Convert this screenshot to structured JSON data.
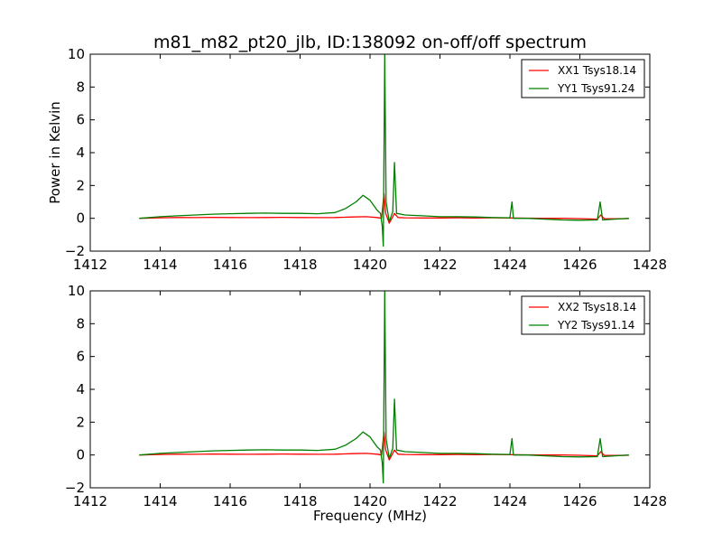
{
  "title": "m81_m82_pt20_jlb, ID:138092 on-off/off spectrum",
  "xlabel": "Frequency (MHz)",
  "ylabel": "Power in Kelvin",
  "chart_data": [
    {
      "type": "line",
      "xlim": [
        1412,
        1428
      ],
      "ylim": [
        -2,
        10
      ],
      "x_ticks": [
        1412,
        1414,
        1416,
        1418,
        1420,
        1422,
        1424,
        1426,
        1428
      ],
      "y_ticks": [
        -2,
        0,
        2,
        4,
        6,
        8,
        10
      ],
      "grid": false,
      "legend_position": "top-right",
      "series": [
        {
          "name": "XX1 Tsys18.14",
          "color": "#ff0000",
          "points": [
            [
              1413.4,
              0.0
            ],
            [
              1414.0,
              0.03
            ],
            [
              1414.5,
              0.05
            ],
            [
              1415.0,
              0.04
            ],
            [
              1415.5,
              0.06
            ],
            [
              1416.0,
              0.05
            ],
            [
              1416.5,
              0.04
            ],
            [
              1417.0,
              0.05
            ],
            [
              1417.5,
              0.06
            ],
            [
              1418.0,
              0.05
            ],
            [
              1418.5,
              0.04
            ],
            [
              1419.0,
              0.05
            ],
            [
              1419.5,
              0.08
            ],
            [
              1419.9,
              0.1
            ],
            [
              1420.2,
              0.05
            ],
            [
              1420.33,
              0.0
            ],
            [
              1420.4,
              1.5
            ],
            [
              1420.45,
              0.3
            ],
            [
              1420.55,
              -0.3
            ],
            [
              1420.65,
              0.1
            ],
            [
              1420.7,
              0.3
            ],
            [
              1420.8,
              0.05
            ],
            [
              1421.0,
              0.03
            ],
            [
              1421.5,
              0.02
            ],
            [
              1422.0,
              0.02
            ],
            [
              1422.5,
              0.03
            ],
            [
              1423.0,
              0.02
            ],
            [
              1423.5,
              0.03
            ],
            [
              1424.0,
              0.02
            ],
            [
              1424.5,
              0.01
            ],
            [
              1425.0,
              0.0
            ],
            [
              1425.5,
              0.0
            ],
            [
              1426.0,
              -0.02
            ],
            [
              1426.5,
              -0.05
            ],
            [
              1426.6,
              0.2
            ],
            [
              1426.7,
              -0.03
            ],
            [
              1427.0,
              -0.03
            ],
            [
              1427.4,
              -0.02
            ]
          ]
        },
        {
          "name": "YY1 Tsys91.24",
          "color": "#008000",
          "points": [
            [
              1413.4,
              0.0
            ],
            [
              1414.0,
              0.1
            ],
            [
              1414.5,
              0.15
            ],
            [
              1415.0,
              0.2
            ],
            [
              1415.5,
              0.25
            ],
            [
              1416.0,
              0.28
            ],
            [
              1416.5,
              0.3
            ],
            [
              1417.0,
              0.32
            ],
            [
              1417.5,
              0.3
            ],
            [
              1418.0,
              0.3
            ],
            [
              1418.5,
              0.28
            ],
            [
              1419.0,
              0.35
            ],
            [
              1419.3,
              0.6
            ],
            [
              1419.6,
              1.0
            ],
            [
              1419.8,
              1.4
            ],
            [
              1420.0,
              1.1
            ],
            [
              1420.2,
              0.5
            ],
            [
              1420.3,
              0.3
            ],
            [
              1420.35,
              -0.5
            ],
            [
              1420.38,
              -1.7
            ],
            [
              1420.42,
              10.0
            ],
            [
              1420.46,
              1.0
            ],
            [
              1420.55,
              -0.2
            ],
            [
              1420.65,
              0.4
            ],
            [
              1420.7,
              3.4
            ],
            [
              1420.76,
              0.3
            ],
            [
              1421.0,
              0.2
            ],
            [
              1421.5,
              0.15
            ],
            [
              1422.0,
              0.1
            ],
            [
              1422.5,
              0.1
            ],
            [
              1423.0,
              0.08
            ],
            [
              1423.5,
              0.05
            ],
            [
              1424.0,
              0.03
            ],
            [
              1424.06,
              1.0
            ],
            [
              1424.1,
              0.0
            ],
            [
              1424.5,
              0.0
            ],
            [
              1425.0,
              -0.05
            ],
            [
              1425.5,
              -0.1
            ],
            [
              1426.0,
              -0.12
            ],
            [
              1426.5,
              -0.1
            ],
            [
              1426.58,
              1.0
            ],
            [
              1426.65,
              -0.1
            ],
            [
              1427.0,
              -0.05
            ],
            [
              1427.4,
              0.0
            ]
          ]
        }
      ]
    },
    {
      "type": "line",
      "xlim": [
        1412,
        1428
      ],
      "ylim": [
        -2,
        10
      ],
      "x_ticks": [
        1412,
        1414,
        1416,
        1418,
        1420,
        1422,
        1424,
        1426,
        1428
      ],
      "y_ticks": [
        -2,
        0,
        2,
        4,
        6,
        8,
        10
      ],
      "grid": false,
      "legend_position": "top-right",
      "series": [
        {
          "name": "XX2 Tsys18.14",
          "color": "#ff0000",
          "points": [
            [
              1413.4,
              0.0
            ],
            [
              1414.0,
              0.03
            ],
            [
              1414.5,
              0.05
            ],
            [
              1415.0,
              0.04
            ],
            [
              1415.5,
              0.06
            ],
            [
              1416.0,
              0.05
            ],
            [
              1416.5,
              0.04
            ],
            [
              1417.0,
              0.05
            ],
            [
              1417.5,
              0.06
            ],
            [
              1418.0,
              0.05
            ],
            [
              1418.5,
              0.04
            ],
            [
              1419.0,
              0.05
            ],
            [
              1419.5,
              0.08
            ],
            [
              1419.9,
              0.1
            ],
            [
              1420.2,
              0.05
            ],
            [
              1420.33,
              0.0
            ],
            [
              1420.4,
              1.4
            ],
            [
              1420.45,
              0.3
            ],
            [
              1420.55,
              -0.3
            ],
            [
              1420.65,
              0.1
            ],
            [
              1420.7,
              0.3
            ],
            [
              1420.8,
              0.05
            ],
            [
              1421.0,
              0.03
            ],
            [
              1421.5,
              0.02
            ],
            [
              1422.0,
              0.02
            ],
            [
              1422.5,
              0.03
            ],
            [
              1423.0,
              0.02
            ],
            [
              1423.5,
              0.03
            ],
            [
              1424.0,
              0.02
            ],
            [
              1424.5,
              0.01
            ],
            [
              1425.0,
              0.0
            ],
            [
              1425.5,
              0.0
            ],
            [
              1426.0,
              -0.02
            ],
            [
              1426.5,
              -0.05
            ],
            [
              1426.6,
              0.2
            ],
            [
              1426.7,
              -0.03
            ],
            [
              1427.0,
              -0.03
            ],
            [
              1427.4,
              -0.02
            ]
          ]
        },
        {
          "name": "YY2 Tsys91.14",
          "color": "#008000",
          "points": [
            [
              1413.4,
              0.0
            ],
            [
              1414.0,
              0.1
            ],
            [
              1414.5,
              0.15
            ],
            [
              1415.0,
              0.2
            ],
            [
              1415.5,
              0.25
            ],
            [
              1416.0,
              0.28
            ],
            [
              1416.5,
              0.3
            ],
            [
              1417.0,
              0.32
            ],
            [
              1417.5,
              0.3
            ],
            [
              1418.0,
              0.3
            ],
            [
              1418.5,
              0.28
            ],
            [
              1419.0,
              0.35
            ],
            [
              1419.3,
              0.6
            ],
            [
              1419.6,
              1.0
            ],
            [
              1419.8,
              1.4
            ],
            [
              1420.0,
              1.1
            ],
            [
              1420.2,
              0.5
            ],
            [
              1420.3,
              0.3
            ],
            [
              1420.35,
              -0.5
            ],
            [
              1420.38,
              -1.7
            ],
            [
              1420.42,
              10.0
            ],
            [
              1420.46,
              1.0
            ],
            [
              1420.55,
              -0.2
            ],
            [
              1420.65,
              0.4
            ],
            [
              1420.7,
              3.4
            ],
            [
              1420.76,
              0.3
            ],
            [
              1421.0,
              0.2
            ],
            [
              1421.5,
              0.15
            ],
            [
              1422.0,
              0.1
            ],
            [
              1422.5,
              0.1
            ],
            [
              1423.0,
              0.08
            ],
            [
              1423.5,
              0.05
            ],
            [
              1424.0,
              0.03
            ],
            [
              1424.06,
              1.0
            ],
            [
              1424.1,
              0.0
            ],
            [
              1424.5,
              0.0
            ],
            [
              1425.0,
              -0.05
            ],
            [
              1425.5,
              -0.1
            ],
            [
              1426.0,
              -0.12
            ],
            [
              1426.5,
              -0.1
            ],
            [
              1426.58,
              1.0
            ],
            [
              1426.65,
              -0.1
            ],
            [
              1427.0,
              -0.05
            ],
            [
              1427.4,
              0.0
            ]
          ]
        }
      ]
    }
  ]
}
